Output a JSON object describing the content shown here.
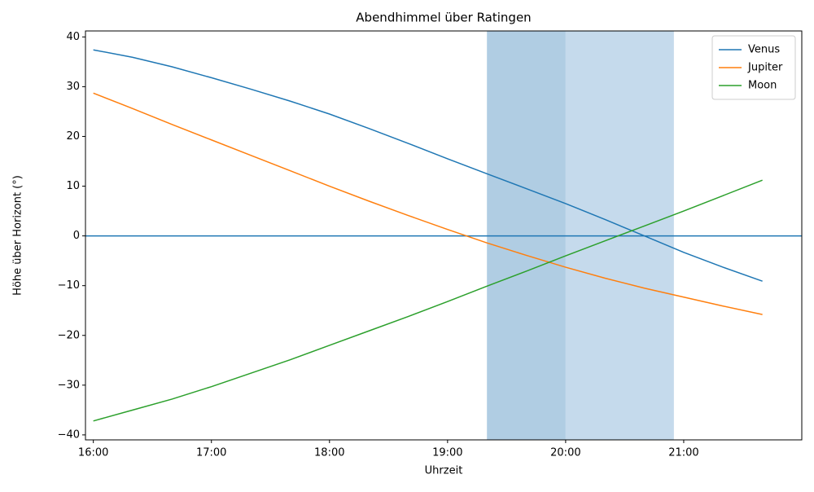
{
  "chart_data": {
    "type": "line",
    "title": "Abendhimmel über Ratingen",
    "xlabel": "Uhrzeit",
    "ylabel": "Höhe über Horizont (°)",
    "x": [
      "16:00",
      "16:20",
      "16:40",
      "17:00",
      "17:20",
      "17:40",
      "18:00",
      "18:20",
      "18:40",
      "19:00",
      "19:20",
      "19:40",
      "20:00",
      "20:20",
      "20:40",
      "21:00",
      "21:20",
      "21:40"
    ],
    "series": [
      {
        "name": "Venus",
        "color": "#1f77b4",
        "values": [
          37.4,
          35.9,
          34.0,
          31.8,
          29.5,
          27.1,
          24.5,
          21.6,
          18.6,
          15.5,
          12.5,
          9.5,
          6.5,
          3.3,
          0.0,
          -3.3,
          -6.3,
          -9.1
        ]
      },
      {
        "name": "Jupiter",
        "color": "#ff7f0e",
        "values": [
          28.7,
          25.6,
          22.4,
          19.3,
          16.2,
          13.1,
          10.0,
          7.0,
          4.1,
          1.3,
          -1.4,
          -3.9,
          -6.3,
          -8.5,
          -10.5,
          -12.3,
          -14.1,
          -15.8
        ]
      },
      {
        "name": "Moon",
        "color": "#2ca02c",
        "values": [
          -37.2,
          -35.0,
          -32.8,
          -30.3,
          -27.6,
          -24.9,
          -22.0,
          -19.1,
          -16.2,
          -13.2,
          -10.1,
          -7.1,
          -4.0,
          -1.0,
          2.0,
          5.0,
          8.1,
          11.2
        ]
      }
    ],
    "spans": [
      {
        "x": [
          "19:20",
          "20:00"
        ],
        "color": "#b0cde3"
      },
      {
        "x": [
          "20:00",
          "20:55"
        ],
        "color": "#c5daec"
      }
    ],
    "hlines": [
      0
    ],
    "hline_color": "#1f77b4",
    "xlim": [
      "15:56",
      "22:00"
    ],
    "xticks": [
      "16:00",
      "17:00",
      "18:00",
      "19:00",
      "20:00",
      "21:00"
    ],
    "ylim": [
      -41,
      41.2
    ],
    "yticks": [
      {
        "value": -40,
        "label": "−40"
      },
      {
        "value": -30,
        "label": "−30"
      },
      {
        "value": -20,
        "label": "−20"
      },
      {
        "value": -10,
        "label": "−10"
      },
      0,
      10,
      20,
      30,
      40
    ],
    "legend": "upper right"
  }
}
